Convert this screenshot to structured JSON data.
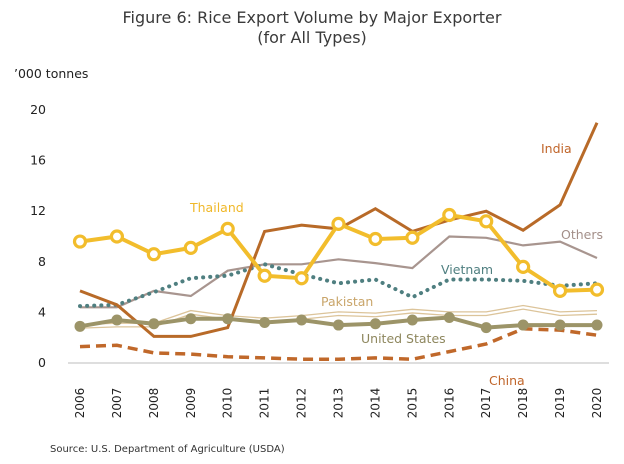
{
  "figure": {
    "title_line1": "Figure 6: Rice Export Volume by Major Exporter",
    "title_line2": "(for All Types)",
    "source": "Source: U.S. Department of Agriculture (USDA)"
  },
  "chart_data": {
    "type": "line",
    "title": "Figure 6: Rice Export Volume by Major Exporter (for All Types)",
    "ylabel": "’000 tonnes",
    "xlabel": "",
    "ylim": [
      0,
      20
    ],
    "yticks": [
      0,
      4,
      8,
      12,
      16,
      20
    ],
    "grid": false,
    "x": [
      "2006",
      "2007",
      "2008",
      "2009",
      "2010",
      "2011",
      "2012",
      "2013",
      "2014",
      "2015",
      "2016",
      "2017",
      "2018",
      "2019",
      "2020"
    ],
    "series": [
      {
        "name": "Others",
        "color": "#a8958f",
        "style": "solid",
        "values": [
          4.4,
          4.4,
          5.7,
          5.3,
          7.3,
          7.8,
          7.8,
          8.2,
          7.9,
          7.5,
          10.0,
          9.9,
          9.3,
          9.6,
          8.3
        ]
      },
      {
        "name": "Pakistan",
        "color": "#dcc49a",
        "style": "double",
        "values": [
          2.9,
          3.0,
          3.0,
          4.0,
          3.6,
          3.4,
          3.6,
          3.9,
          3.8,
          4.1,
          3.9,
          3.9,
          4.4,
          3.9,
          4.0
        ]
      },
      {
        "name": "China",
        "color": "#c0682a",
        "style": "dashed",
        "values": [
          1.3,
          1.4,
          0.8,
          0.7,
          0.5,
          0.4,
          0.3,
          0.3,
          0.4,
          0.3,
          0.9,
          1.5,
          2.7,
          2.6,
          2.2
        ]
      },
      {
        "name": "Vietnam",
        "color": "#4f7f80",
        "style": "dotted",
        "values": [
          4.5,
          4.6,
          5.6,
          6.7,
          6.9,
          7.8,
          7.0,
          6.3,
          6.6,
          5.2,
          6.6,
          6.6,
          6.5,
          6.1,
          6.3
        ]
      },
      {
        "name": "India",
        "color": "#b86a28",
        "style": "solid",
        "values": [
          5.7,
          4.6,
          2.1,
          2.1,
          2.8,
          10.4,
          10.9,
          10.6,
          12.2,
          10.4,
          11.3,
          12.0,
          10.5,
          12.5,
          19.0
        ]
      },
      {
        "name": "United States",
        "color": "#9c9468",
        "style": "solid-markers",
        "values": [
          2.9,
          3.4,
          3.1,
          3.5,
          3.5,
          3.2,
          3.4,
          3.0,
          3.1,
          3.4,
          3.6,
          2.8,
          3.0,
          3.0,
          3.0
        ]
      },
      {
        "name": "Thailand",
        "color": "#f2bd2c",
        "style": "solid-ring-markers",
        "values": [
          9.6,
          10.0,
          8.6,
          9.1,
          10.6,
          6.9,
          6.7,
          11.0,
          9.8,
          9.9,
          11.7,
          11.2,
          7.6,
          5.7,
          5.8
        ]
      }
    ]
  }
}
